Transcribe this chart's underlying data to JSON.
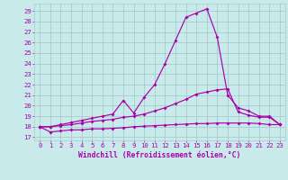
{
  "xlabel": "Windchill (Refroidissement éolien,°C)",
  "bg_color": "#c8eaea",
  "grid_color": "#a8cccc",
  "line_color": "#aa00aa",
  "x_ticks": [
    0,
    1,
    2,
    3,
    4,
    5,
    6,
    7,
    8,
    9,
    10,
    11,
    12,
    13,
    14,
    15,
    16,
    17,
    18,
    19,
    20,
    21,
    22,
    23
  ],
  "y_ticks": [
    17,
    18,
    19,
    20,
    21,
    22,
    23,
    24,
    25,
    26,
    27,
    28,
    29
  ],
  "ylim": [
    16.7,
    29.7
  ],
  "xlim": [
    -0.5,
    23.5
  ],
  "line1_x": [
    0,
    1,
    2,
    3,
    4,
    5,
    6,
    7,
    8,
    9,
    10,
    11,
    12,
    13,
    14,
    15,
    16,
    17,
    18,
    19,
    20,
    21,
    22,
    23
  ],
  "line1_y": [
    18.0,
    17.5,
    17.6,
    17.7,
    17.7,
    17.8,
    17.8,
    17.85,
    17.9,
    18.0,
    18.05,
    18.1,
    18.15,
    18.2,
    18.25,
    18.3,
    18.3,
    18.35,
    18.35,
    18.35,
    18.35,
    18.3,
    18.2,
    18.2
  ],
  "line2_x": [
    0,
    1,
    2,
    3,
    4,
    5,
    6,
    7,
    8,
    9,
    10,
    11,
    12,
    13,
    14,
    15,
    16,
    17,
    18,
    19,
    20,
    21,
    22,
    23
  ],
  "line2_y": [
    18.0,
    18.0,
    18.1,
    18.2,
    18.35,
    18.5,
    18.6,
    18.7,
    18.9,
    19.0,
    19.2,
    19.5,
    19.8,
    20.2,
    20.6,
    21.1,
    21.3,
    21.5,
    21.6,
    19.4,
    19.1,
    18.9,
    18.9,
    18.2
  ],
  "line3_x": [
    0,
    1,
    2,
    3,
    4,
    5,
    6,
    7,
    8,
    9,
    10,
    11,
    12,
    13,
    14,
    15,
    16,
    17,
    18,
    19,
    20,
    21,
    22,
    23
  ],
  "line3_y": [
    18.0,
    18.0,
    18.2,
    18.4,
    18.6,
    18.8,
    19.0,
    19.2,
    20.5,
    19.3,
    20.8,
    22.0,
    24.0,
    26.2,
    28.4,
    28.8,
    29.2,
    26.5,
    21.0,
    19.8,
    19.5,
    19.0,
    19.0,
    18.2
  ],
  "markersize": 2.0,
  "linewidth": 0.85,
  "tick_fontsize": 5.2,
  "xlabel_fontsize": 5.8
}
